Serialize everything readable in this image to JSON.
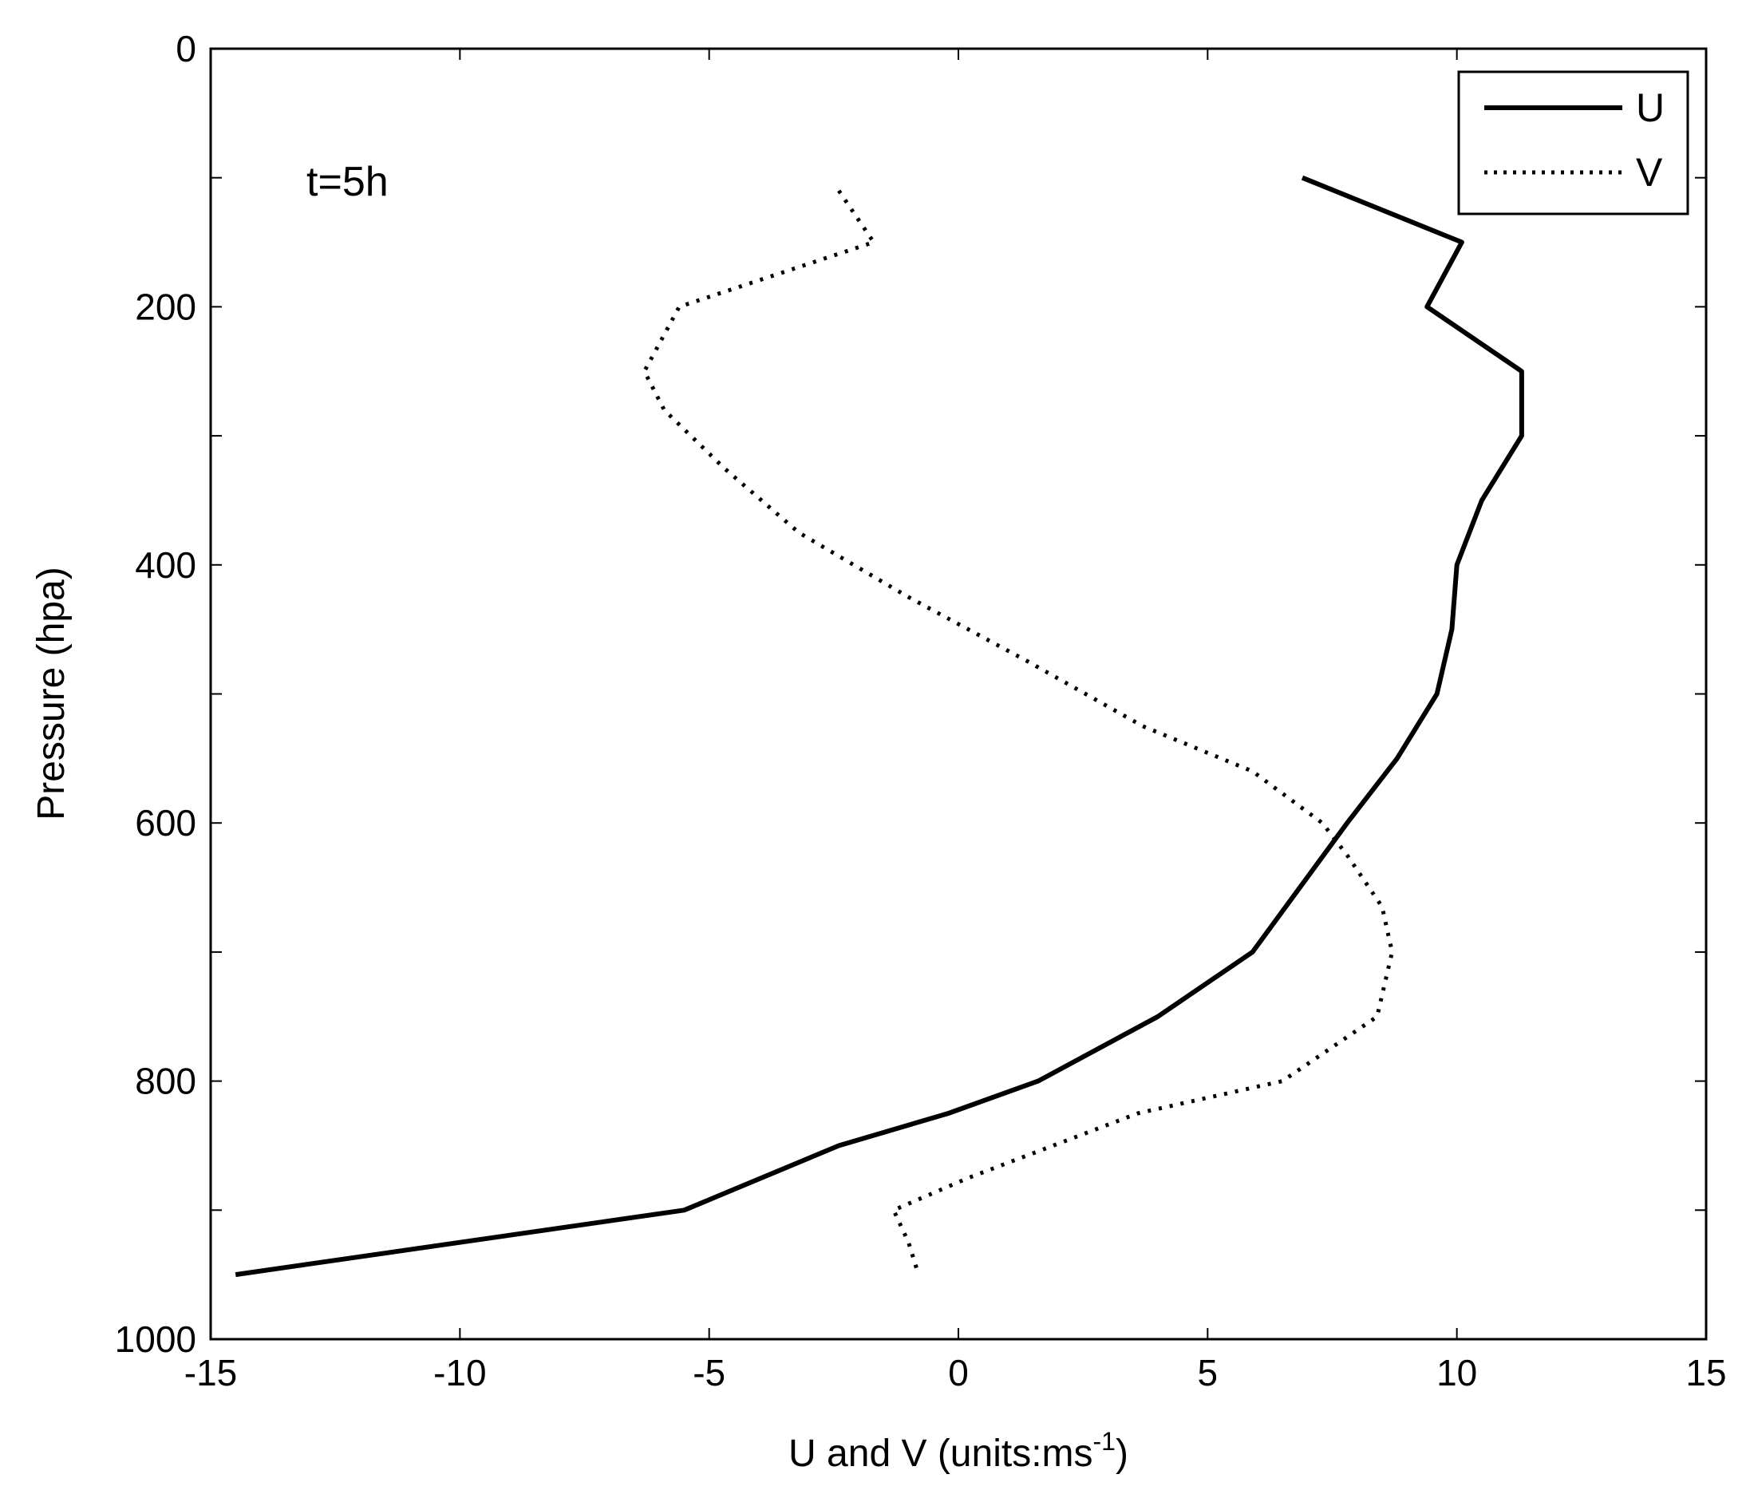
{
  "chart_data": {
    "type": "line",
    "title": "",
    "xlabel": "U and V (units:ms",
    "xlabel_superscript": "-1",
    "xlabel_suffix": ")",
    "ylabel": "Pressure (hpa)",
    "xlim": [
      -15,
      15
    ],
    "ylim": [
      0,
      1000
    ],
    "y_inverted": true,
    "x_ticks": [
      -15,
      -10,
      -5,
      0,
      5,
      10,
      15
    ],
    "y_ticks": [
      0,
      200,
      400,
      600,
      800,
      1000
    ],
    "grid": false,
    "legend_position": "top-right",
    "annotation": "t=5h",
    "series": [
      {
        "name": "U",
        "style": "solid",
        "color": "#000000",
        "x": [
          6.9,
          10.1,
          9.4,
          11.3,
          11.3,
          11.3,
          10.5,
          10.0,
          9.9,
          9.6,
          8.8,
          7.8,
          5.9,
          4.0,
          1.6,
          -0.2,
          -2.4,
          -5.5,
          -14.5
        ],
        "y": [
          100,
          150,
          200,
          250,
          275,
          300,
          350,
          400,
          450,
          500,
          550,
          600,
          700,
          750,
          800,
          825,
          850,
          900,
          950
        ]
      },
      {
        "name": "V",
        "style": "dotted",
        "color": "#000000",
        "x": [
          -2.4,
          -1.7,
          -5.6,
          -6.3,
          -5.9,
          -4.7,
          -3.2,
          -1.0,
          1.4,
          3.7,
          5.9,
          7.3,
          7.8,
          8.5,
          8.7,
          8.4,
          6.5,
          3.6,
          0.2,
          -1.3,
          -1.0,
          -0.8
        ],
        "y": [
          110,
          150,
          200,
          250,
          280,
          325,
          375,
          425,
          475,
          525,
          560,
          600,
          625,
          665,
          700,
          750,
          800,
          825,
          875,
          900,
          925,
          950
        ]
      }
    ]
  }
}
